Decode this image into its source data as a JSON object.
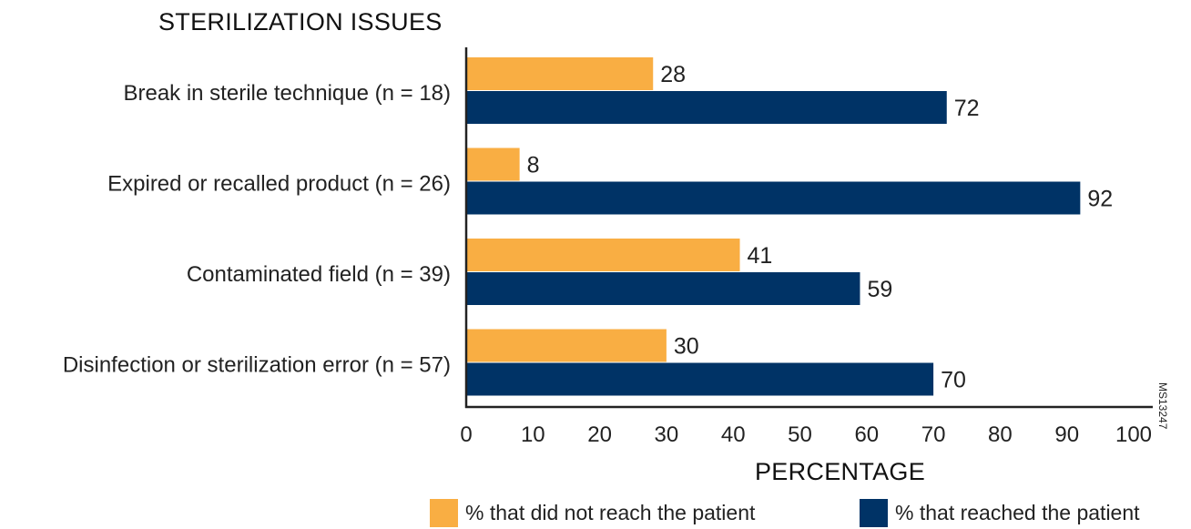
{
  "chart_data": {
    "type": "bar",
    "orientation": "horizontal",
    "title": "STERILIZATION ISSUES",
    "xlabel": "PERCENTAGE",
    "ylabel": "",
    "categories": [
      "Break in sterile technique (n = 18)",
      "Expired or recalled product (n = 26)",
      "Contaminated field (n = 39)",
      "Disinfection or sterilization error (n = 57)"
    ],
    "series": [
      {
        "name": "% that did not reach the patient",
        "color": "#F9AE43",
        "values": [
          28,
          8,
          41,
          30
        ]
      },
      {
        "name": "% that reached the patient",
        "color": "#003366",
        "values": [
          72,
          92,
          59,
          70
        ]
      }
    ],
    "xlim": [
      0,
      100
    ],
    "xticks": [
      "0",
      "10",
      "20",
      "30",
      "40",
      "50",
      "60",
      "70",
      "80",
      "90",
      "100"
    ],
    "grid": false,
    "legend_position": "bottom",
    "annotation": "MS13247"
  }
}
